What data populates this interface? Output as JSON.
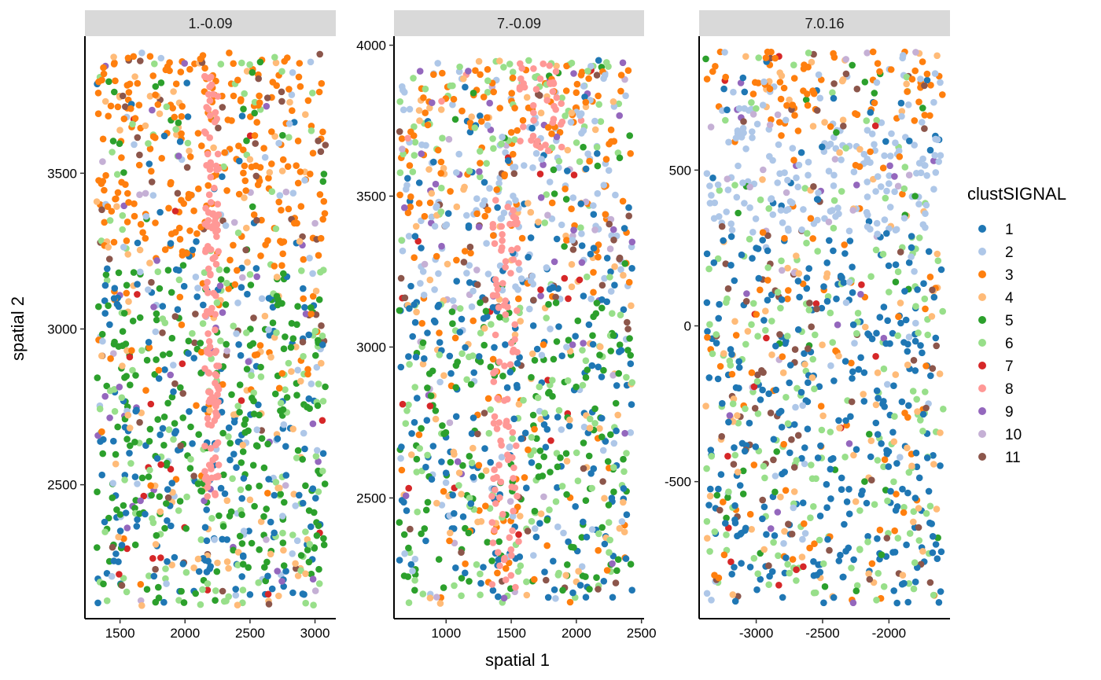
{
  "chart_data": {
    "type": "scatter",
    "xlabel": "spatial 1",
    "ylabel": "spatial 2",
    "legend": {
      "title": "clustSIGNAL",
      "position": "right",
      "entries": [
        "1",
        "2",
        "3",
        "4",
        "5",
        "6",
        "7",
        "8",
        "9",
        "10",
        "11"
      ],
      "colors": [
        "#1f77b4",
        "#aec7e8",
        "#ff7f0e",
        "#ffbb78",
        "#2ca02c",
        "#98df8a",
        "#d62728",
        "#ff9896",
        "#9467bd",
        "#c5b0d5",
        "#8c564b"
      ]
    },
    "grid": false,
    "panels": [
      {
        "strip": "1.-0.09",
        "xlim": [
          1230,
          3160
        ],
        "ylim": [
          2070,
          3940
        ],
        "xticks": [
          1500,
          2000,
          2500,
          3000
        ],
        "yticks": [
          2500,
          3000,
          3500
        ],
        "xtick_labels": [
          "1500",
          "2000",
          "2500",
          "3000"
        ],
        "ytick_labels": [
          "2500",
          "3000",
          "3500"
        ],
        "xrange": [
          1320,
          3080
        ],
        "yrange": [
          2110,
          3890
        ],
        "regions": [
          {
            "x": [
              1320,
              3080
            ],
            "y": [
              3200,
              3890
            ],
            "weights": [
              0.05,
              0.06,
              0.55,
              0.1,
              0.06,
              0.08,
              0.01,
              0.0,
              0.02,
              0.02,
              0.05
            ],
            "n": 430
          },
          {
            "x": [
              1320,
              3080
            ],
            "y": [
              2750,
              3200
            ],
            "weights": [
              0.2,
              0.06,
              0.12,
              0.06,
              0.3,
              0.12,
              0.02,
              0.0,
              0.04,
              0.02,
              0.06
            ],
            "n": 320
          },
          {
            "x": [
              1320,
              3080
            ],
            "y": [
              2110,
              2750
            ],
            "weights": [
              0.26,
              0.06,
              0.03,
              0.1,
              0.3,
              0.14,
              0.02,
              0.0,
              0.03,
              0.01,
              0.05
            ],
            "n": 460
          },
          {
            "x": [
              2150,
              2260
            ],
            "y": [
              2450,
              3820
            ],
            "weights": [
              0,
              0,
              0,
              0,
              0,
              0,
              0,
              1,
              0,
              0,
              0
            ],
            "n": 130
          }
        ]
      },
      {
        "strip": "7.-0.09",
        "xlim": [
          600,
          2520
        ],
        "ylim": [
          2100,
          4030
        ],
        "xticks": [
          1000,
          1500,
          2000,
          2500
        ],
        "yticks": [
          2500,
          3000,
          3500,
          4000
        ],
        "xtick_labels": [
          "1000",
          "1500",
          "2000",
          "2500"
        ],
        "ytick_labels": [
          "2500",
          "3000",
          "3500",
          "4000"
        ],
        "xrange": [
          640,
          2430
        ],
        "yrange": [
          2150,
          3950
        ],
        "regions": [
          {
            "x": [
              640,
              2430
            ],
            "y": [
              3600,
              3950
            ],
            "weights": [
              0.05,
              0.2,
              0.3,
              0.08,
              0.03,
              0.2,
              0.02,
              0.02,
              0.05,
              0.03,
              0.02
            ],
            "n": 270
          },
          {
            "x": [
              640,
              2430
            ],
            "y": [
              3150,
              3600
            ],
            "weights": [
              0.15,
              0.3,
              0.18,
              0.08,
              0.05,
              0.05,
              0.03,
              0.0,
              0.06,
              0.04,
              0.06
            ],
            "n": 300
          },
          {
            "x": [
              640,
              2430
            ],
            "y": [
              2150,
              3150
            ],
            "weights": [
              0.25,
              0.06,
              0.08,
              0.1,
              0.26,
              0.16,
              0.02,
              0.0,
              0.02,
              0.01,
              0.04
            ],
            "n": 620
          },
          {
            "x": [
              1350,
              1560
            ],
            "y": [
              2200,
              3500
            ],
            "weights": [
              0,
              0,
              0,
              0,
              0,
              0,
              0,
              1,
              0,
              0,
              0
            ],
            "n": 100
          },
          {
            "x": [
              1560,
              1900
            ],
            "y": [
              3650,
              3940
            ],
            "weights": [
              0,
              0,
              0,
              0,
              0,
              0,
              0,
              1,
              0,
              0,
              0
            ],
            "n": 40
          }
        ]
      },
      {
        "strip": "7.0.16",
        "xlim": [
          -3430,
          -1540
        ],
        "ylim": [
          -940,
          930
        ],
        "xticks": [
          -3000,
          -2500,
          -2000
        ],
        "yticks": [
          -500,
          0,
          500
        ],
        "xtick_labels": [
          "-3000",
          "-2500",
          "-2000"
        ],
        "ytick_labels": [
          "-500",
          "0",
          "500"
        ],
        "xrange": [
          -3380,
          -1590
        ],
        "yrange": [
          -890,
          880
        ],
        "regions": [
          {
            "x": [
              -3380,
              -1590
            ],
            "y": [
              650,
              880
            ],
            "weights": [
              0.08,
              0.2,
              0.35,
              0.1,
              0.05,
              0.06,
              0.04,
              0.0,
              0.04,
              0.02,
              0.06
            ],
            "n": 160
          },
          {
            "x": [
              -3380,
              -1590
            ],
            "y": [
              300,
              650
            ],
            "weights": [
              0.05,
              0.65,
              0.08,
              0.04,
              0.02,
              0.05,
              0.01,
              0.0,
              0.03,
              0.05,
              0.02
            ],
            "n": 230
          },
          {
            "x": [
              -3380,
              -1590
            ],
            "y": [
              -890,
              300
            ],
            "weights": [
              0.38,
              0.04,
              0.08,
              0.1,
              0.02,
              0.25,
              0.03,
              0.0,
              0.01,
              0.01,
              0.08
            ],
            "n": 720
          }
        ]
      }
    ]
  }
}
